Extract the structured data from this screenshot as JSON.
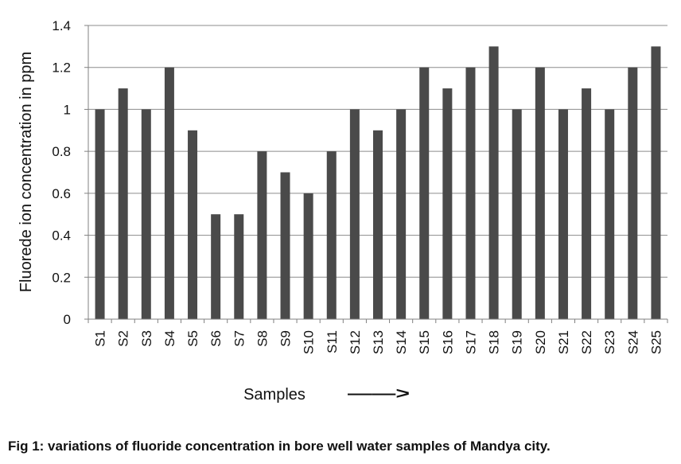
{
  "caption": "Fig 1: variations of fluoride concentration in bore well water samples of Mandya city.",
  "chart_data": {
    "type": "bar",
    "categories": [
      "S1",
      "S2",
      "S3",
      "S4",
      "S5",
      "S6",
      "S7",
      "S8",
      "S9",
      "S10",
      "S11",
      "S12",
      "S13",
      "S14",
      "S15",
      "S16",
      "S17",
      "S18",
      "S19",
      "S20",
      "S21",
      "S22",
      "S23",
      "S24",
      "S25"
    ],
    "values": [
      1.0,
      1.1,
      1.0,
      1.2,
      0.9,
      0.5,
      0.5,
      0.8,
      0.7,
      0.6,
      0.8,
      1.0,
      0.9,
      1.0,
      1.2,
      1.1,
      1.2,
      1.3,
      1.0,
      1.2,
      1.0,
      1.1,
      1.0,
      1.2,
      1.3
    ],
    "yticks": [
      0,
      0.2,
      0.4,
      0.6,
      0.8,
      1,
      1.2,
      1.4
    ],
    "ylim": [
      0,
      1.4
    ],
    "xlabel": "Samples",
    "xlabel_arrow": "——>",
    "ylabel": "Fluorede ion concentration in ppm",
    "grid": true,
    "legend": "none",
    "colors": {
      "bar": "#4a4a4a",
      "grid": "#8c8c8c",
      "axis": "#808080"
    }
  }
}
